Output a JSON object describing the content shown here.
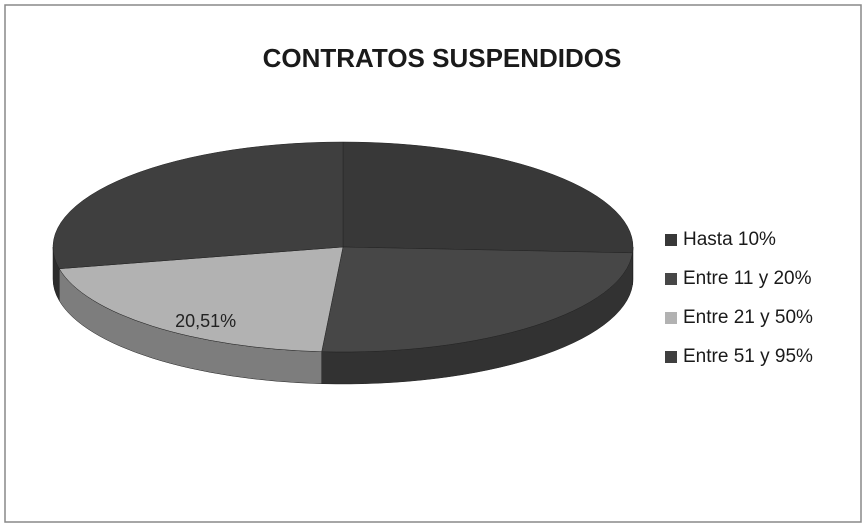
{
  "chart_data": {
    "type": "pie3d",
    "title": "CONTRATOS SUSPENDIDOS",
    "categories": [
      "Hasta 10%",
      "Entre 11 y 20%",
      "Entre 21 y 50%",
      "Entre 51 y 95%"
    ],
    "values": [
      25.89,
      25.28,
      20.51,
      28.32
    ],
    "value_labels": [
      null,
      null,
      "20,51%",
      null
    ],
    "colors": [
      "#383838",
      "#474747",
      "#b2b2b2",
      "#3f3f3f"
    ],
    "legend": "right"
  }
}
